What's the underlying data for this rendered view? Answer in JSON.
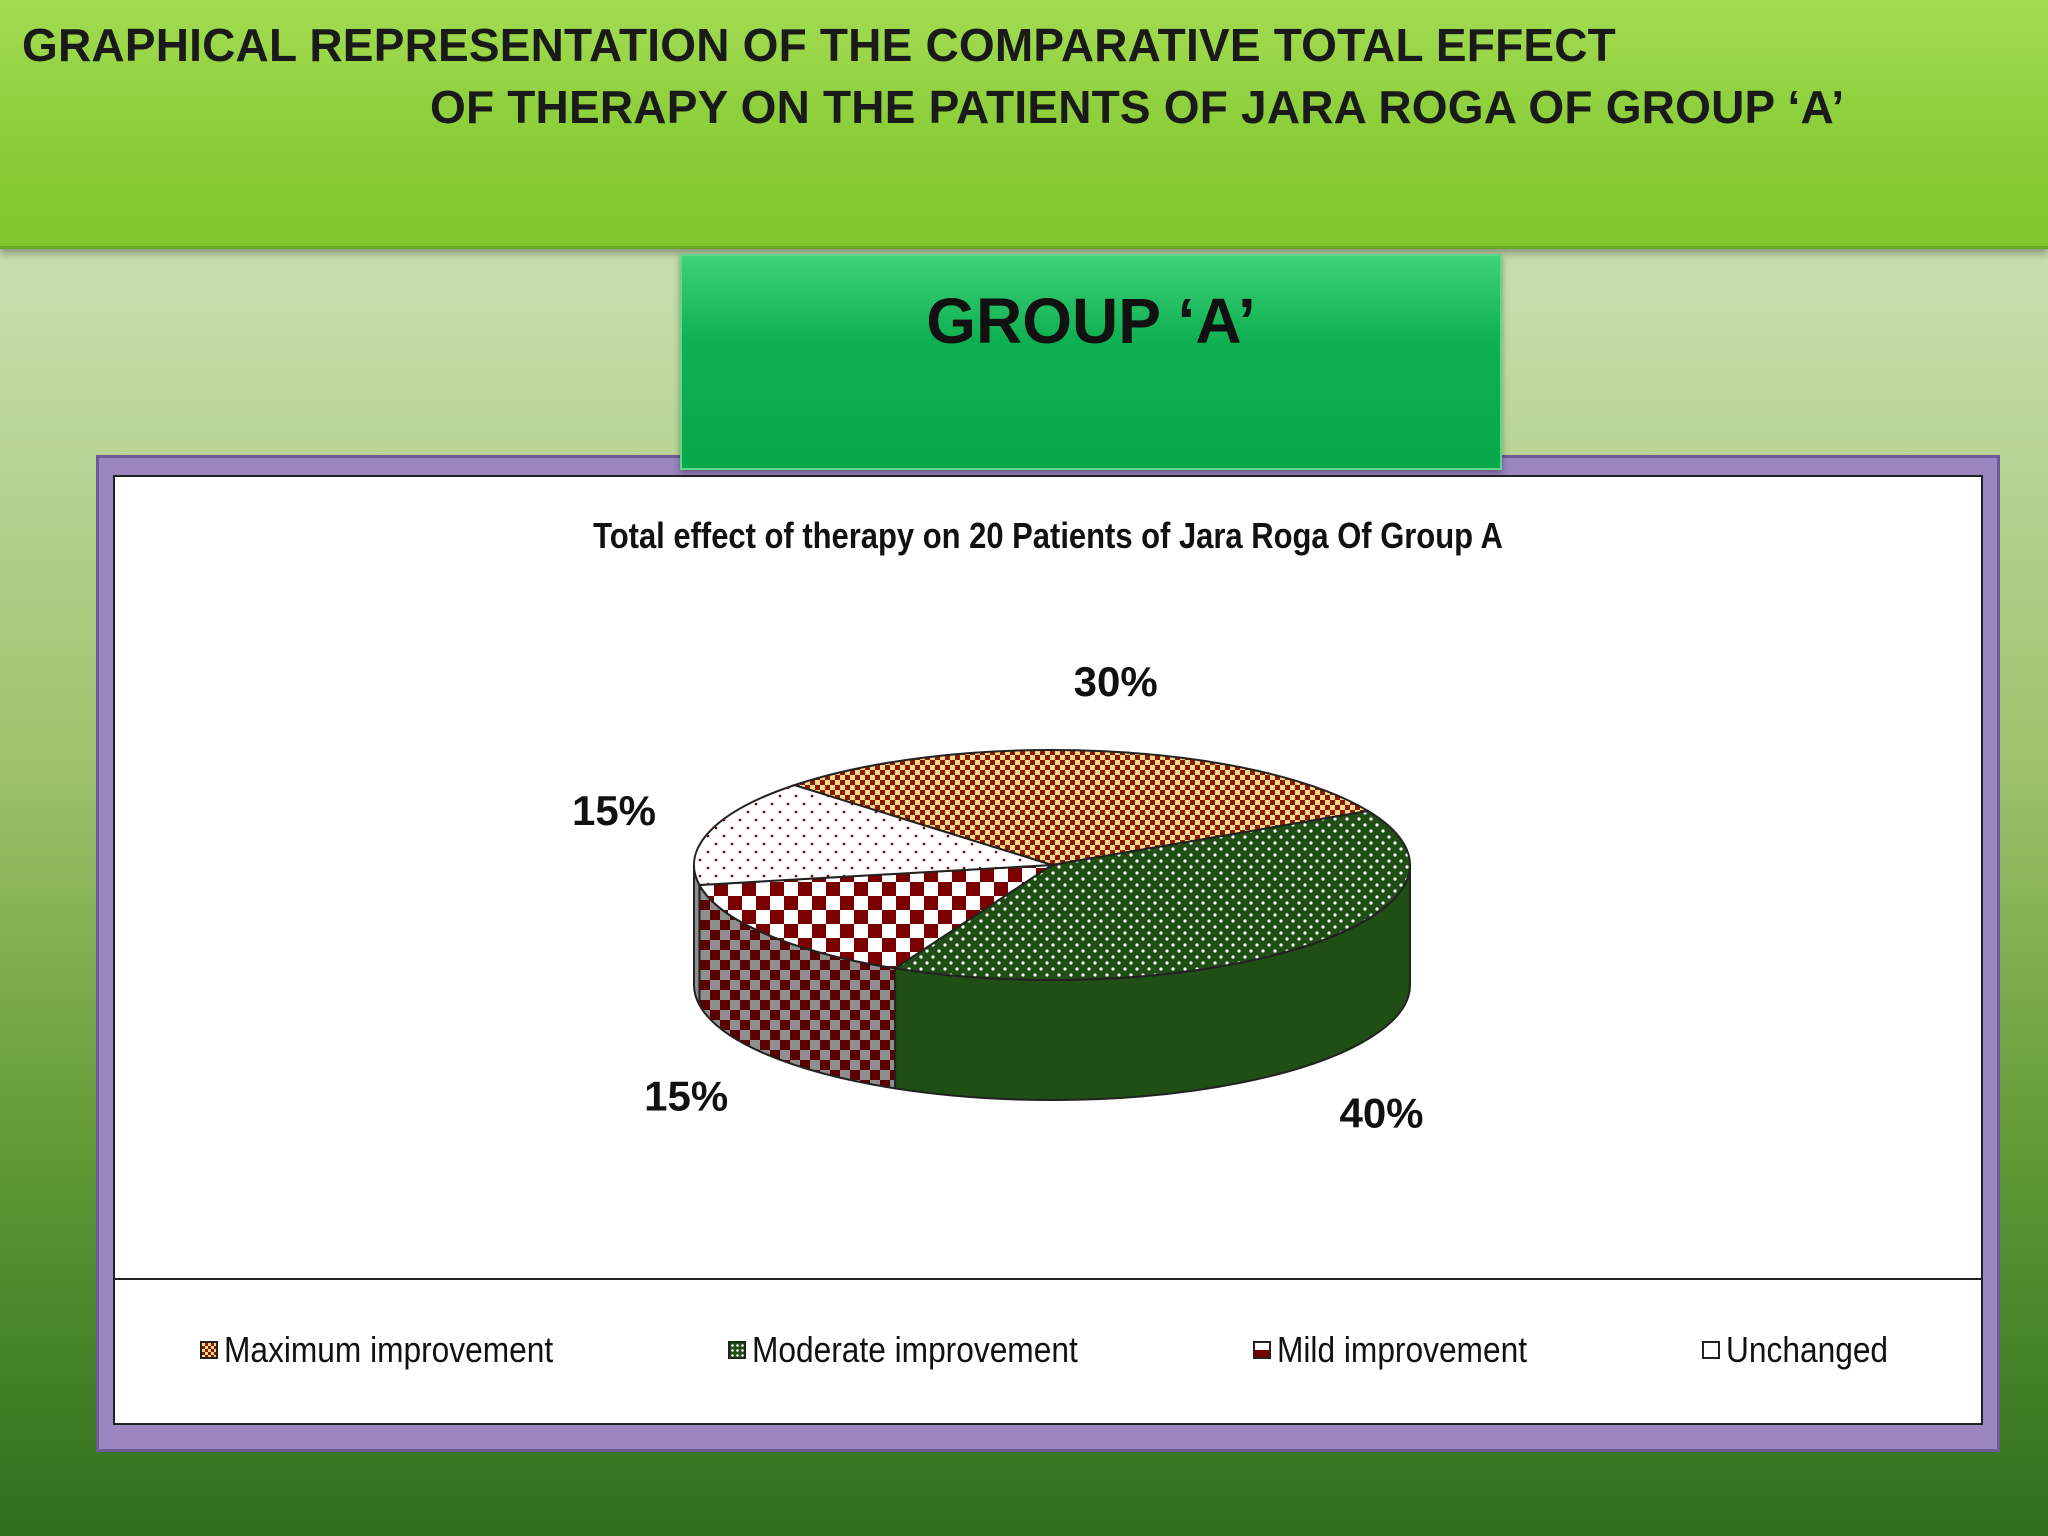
{
  "slide": {
    "title_line1": "GRAPHICAL REPRESENTATION OF THE COMPARATIVE TOTAL EFFECT",
    "title_line2": "OF THERAPY ON THE PATIENTS OF JARA ROGA OF GROUP ‘A’",
    "group_label": "GROUP ‘A’"
  },
  "colors": {
    "maximum": "#8b0000",
    "moderate": "#1f4f14",
    "mild": "#7a0000",
    "unchanged": "#8f8f8f"
  },
  "chart_data": {
    "type": "pie",
    "title": "Total effect of therapy on 20 Patients of Jara Roga Of Group A",
    "categories": [
      "Maximum improvement",
      "Moderate improvement",
      "Mild improvement",
      "Unchanged"
    ],
    "values": [
      30,
      40,
      15,
      15
    ],
    "data_labels": [
      "30%",
      "40%",
      "15%",
      "15%"
    ],
    "legend_position": "bottom",
    "style": "3d-patterned"
  }
}
